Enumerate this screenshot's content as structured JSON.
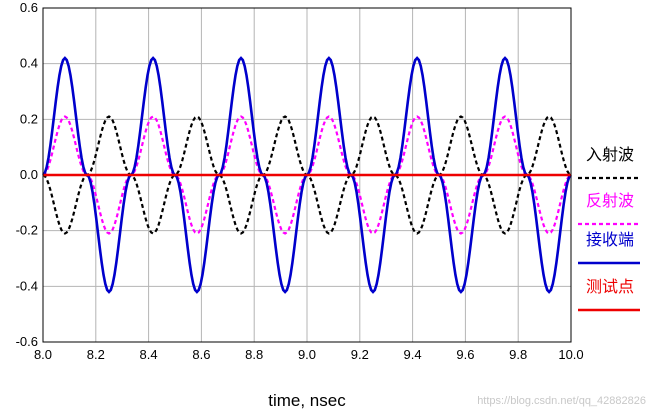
{
  "chart_data": {
    "type": "line",
    "xlabel": "time, nsec",
    "ylabel": "",
    "xlim": [
      8.0,
      10.0
    ],
    "ylim": [
      -0.6,
      0.6
    ],
    "x_ticks": [
      "8.0",
      "8.2",
      "8.4",
      "8.6",
      "8.8",
      "9.0",
      "9.2",
      "9.4",
      "9.6",
      "9.8",
      "10.0"
    ],
    "y_ticks": [
      "0.6",
      "0.4",
      "0.2",
      "0.0",
      "-0.2",
      "-0.4",
      "-0.6"
    ],
    "grid": true,
    "legend_position": "right",
    "series": [
      {
        "name": "入射波",
        "color": "#000000",
        "style": "dashed",
        "x": [
          8.0,
          8.083,
          8.167,
          8.25,
          8.333,
          8.417,
          8.5,
          8.583,
          8.667,
          8.75,
          8.833,
          8.917,
          9.0,
          9.083,
          9.167,
          9.25,
          9.333,
          9.417,
          9.5,
          9.583,
          9.667,
          9.75,
          9.833,
          9.917,
          10.0
        ],
        "values": [
          0.0,
          -0.21,
          0.0,
          0.21,
          0.0,
          -0.21,
          0.0,
          0.21,
          0.0,
          -0.21,
          0.0,
          0.21,
          0.0,
          -0.21,
          0.0,
          0.21,
          0.0,
          -0.21,
          0.0,
          0.21,
          0.0,
          -0.21,
          0.0,
          0.21,
          0.0
        ]
      },
      {
        "name": "反射波",
        "color": "#ff00ff",
        "style": "dashed",
        "x": [
          8.0,
          8.083,
          8.167,
          8.25,
          8.333,
          8.417,
          8.5,
          8.583,
          8.667,
          8.75,
          8.833,
          8.917,
          9.0,
          9.083,
          9.167,
          9.25,
          9.333,
          9.417,
          9.5,
          9.583,
          9.667,
          9.75,
          9.833,
          9.917,
          10.0
        ],
        "values": [
          0.0,
          0.21,
          0.0,
          -0.21,
          0.0,
          0.21,
          0.0,
          -0.21,
          0.0,
          0.21,
          0.0,
          -0.21,
          0.0,
          0.21,
          0.0,
          -0.21,
          0.0,
          0.21,
          0.0,
          -0.21,
          0.0,
          0.21,
          0.0,
          -0.21,
          0.0
        ]
      },
      {
        "name": "接收端",
        "color": "#0000cc",
        "style": "solid",
        "x": [
          8.0,
          8.083,
          8.167,
          8.25,
          8.333,
          8.417,
          8.5,
          8.583,
          8.667,
          8.75,
          8.833,
          8.917,
          9.0,
          9.083,
          9.167,
          9.25,
          9.333,
          9.417,
          9.5,
          9.583,
          9.667,
          9.75,
          9.833,
          9.917,
          10.0
        ],
        "values": [
          0.0,
          0.42,
          0.0,
          -0.42,
          0.0,
          0.42,
          0.0,
          -0.42,
          0.0,
          0.42,
          0.0,
          -0.42,
          0.0,
          0.42,
          0.0,
          -0.42,
          0.0,
          0.42,
          0.0,
          -0.42,
          0.0,
          0.42,
          0.0,
          -0.42,
          0.0
        ]
      },
      {
        "name": "测试点",
        "color": "#ee0000",
        "style": "solid",
        "x": [
          8.0,
          10.0
        ],
        "values": [
          0.0,
          0.0
        ]
      }
    ]
  },
  "watermark": "https://blog.csdn.net/qq_42882826"
}
